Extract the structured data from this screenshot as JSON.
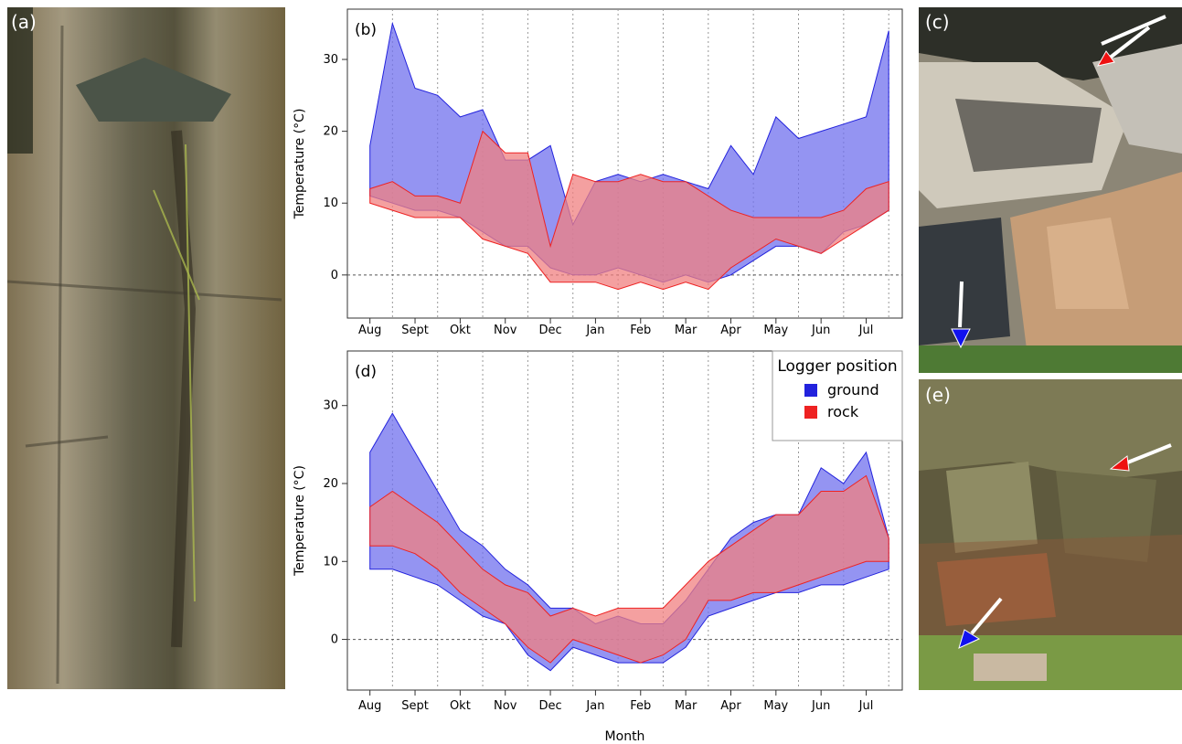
{
  "panels": {
    "a": "(a)",
    "b": "(b)",
    "c": "(c)",
    "d": "(d)",
    "e": "(e)"
  },
  "colors": {
    "ground": "#2222dd",
    "ground_fill": "#7070ee",
    "rock": "#ee2222",
    "rock_fill": "#f08080",
    "overlap_fill": "#aa3080"
  },
  "legend": {
    "title": "Logger position",
    "entries": [
      "ground",
      "rock"
    ]
  },
  "chart_data": [
    {
      "type": "area",
      "panel": "(b)",
      "xlabel": "",
      "ylabel": "Temperature (°C)",
      "ylim": [
        -6,
        37
      ],
      "yticks": [
        0,
        10,
        20,
        30
      ],
      "month_ticks": [
        "Aug",
        "Sept",
        "Okt",
        "Nov",
        "Dec",
        "Jan",
        "Feb",
        "Mar",
        "Apr",
        "May",
        "Jun",
        "Jul"
      ],
      "reference_line": 0,
      "x": [
        0,
        0.5,
        1,
        1.5,
        2,
        2.5,
        3,
        3.5,
        4,
        4.5,
        5,
        5.5,
        6,
        6.5,
        7,
        7.5,
        8,
        8.5,
        9,
        9.5,
        10,
        10.5,
        11,
        11.5
      ],
      "series": [
        {
          "name": "ground",
          "max": [
            18,
            35,
            26,
            25,
            22,
            23,
            16,
            16,
            18,
            7,
            13,
            14,
            13,
            14,
            13,
            12,
            18,
            14,
            22,
            19,
            20,
            21,
            22,
            34
          ],
          "min": [
            11,
            10,
            9,
            9,
            8,
            6,
            4,
            4,
            1,
            0,
            0,
            1,
            0,
            -1,
            0,
            -1,
            0,
            2,
            4,
            4,
            3,
            6,
            7,
            9
          ]
        },
        {
          "name": "rock",
          "max": [
            12,
            13,
            11,
            11,
            10,
            20,
            17,
            17,
            4,
            14,
            13,
            13,
            14,
            13,
            13,
            11,
            9,
            8,
            8,
            8,
            8,
            9,
            12,
            13
          ],
          "min": [
            10,
            9,
            8,
            8,
            8,
            5,
            4,
            3,
            -1,
            -1,
            -1,
            -2,
            -1,
            -2,
            -1,
            -2,
            1,
            3,
            5,
            4,
            3,
            5,
            7,
            9
          ]
        }
      ]
    },
    {
      "type": "area",
      "panel": "(d)",
      "xlabel": "Month",
      "ylabel": "Temperature (°C)",
      "ylim": [
        -6.5,
        37
      ],
      "yticks": [
        0,
        10,
        20,
        30
      ],
      "month_ticks": [
        "Aug",
        "Sept",
        "Okt",
        "Nov",
        "Dec",
        "Jan",
        "Feb",
        "Mar",
        "Apr",
        "May",
        "Jun",
        "Jul"
      ],
      "reference_line": 0,
      "x": [
        0,
        0.5,
        1,
        1.5,
        2,
        2.5,
        3,
        3.5,
        4,
        4.5,
        5,
        5.5,
        6,
        6.5,
        7,
        7.5,
        8,
        8.5,
        9,
        9.5,
        10,
        10.5,
        11,
        11.5
      ],
      "series": [
        {
          "name": "ground",
          "max": [
            24,
            29,
            24,
            19,
            14,
            12,
            9,
            7,
            4,
            4,
            2,
            3,
            2,
            2,
            5,
            9,
            13,
            15,
            16,
            16,
            22,
            20,
            24,
            13
          ],
          "min": [
            9,
            9,
            8,
            7,
            5,
            3,
            2,
            -2,
            -4,
            -1,
            -2,
            -3,
            -3,
            -3,
            -1,
            3,
            4,
            5,
            6,
            6,
            7,
            7,
            8,
            9
          ]
        },
        {
          "name": "rock",
          "max": [
            17,
            19,
            17,
            15,
            12,
            9,
            7,
            6,
            3,
            4,
            3,
            4,
            4,
            4,
            7,
            10,
            12,
            14,
            16,
            16,
            19,
            19,
            21,
            13
          ],
          "min": [
            12,
            12,
            11,
            9,
            6,
            4,
            2,
            -1,
            -3,
            0,
            -1,
            -2,
            -3,
            -2,
            0,
            5,
            5,
            6,
            6,
            7,
            8,
            9,
            10,
            10
          ]
        }
      ]
    }
  ]
}
